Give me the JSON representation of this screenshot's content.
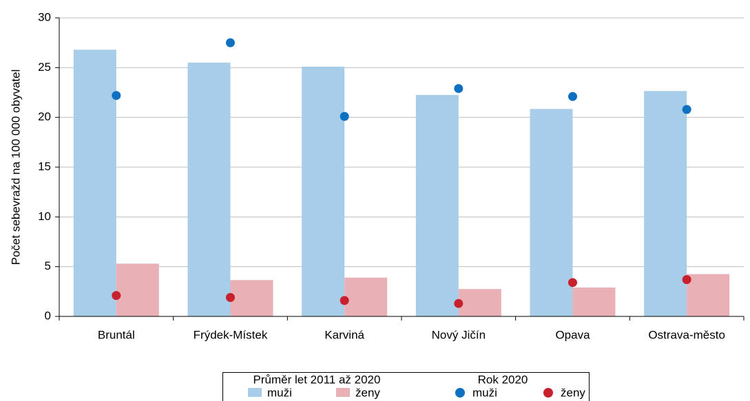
{
  "chart_data": {
    "type": "bar",
    "ylabel": "Počet sebevražd na 100 000 obyvatel",
    "categories": [
      "Bruntál",
      "Frýdek-Místek",
      "Karviná",
      "Nový Jičín",
      "Opava",
      "Ostrava-město"
    ],
    "ylim": [
      0,
      30
    ],
    "yticks": [
      0,
      5,
      10,
      15,
      20,
      25,
      30
    ],
    "grid": true,
    "groups": [
      {
        "title": "Průměr let 2011 až 2020",
        "mark": "bar",
        "series": [
          {
            "name": "muži",
            "color": "#a7cde8",
            "values": [
              26.8,
              25.5,
              25.1,
              22.25,
              20.85,
              22.65
            ]
          },
          {
            "name": "ženy",
            "color": "#e9b1b6",
            "values": [
              5.3,
              3.65,
              3.9,
              2.75,
              2.9,
              4.25
            ]
          }
        ]
      },
      {
        "title": "Rok 2020",
        "mark": "dot",
        "series": [
          {
            "name": "muži",
            "color": "#0e70c0",
            "values": [
              22.2,
              27.5,
              20.1,
              22.9,
              22.1,
              20.8
            ]
          },
          {
            "name": "ženy",
            "color": "#c8202c",
            "values": [
              2.1,
              1.9,
              1.6,
              1.3,
              3.4,
              3.7
            ]
          }
        ]
      }
    ]
  }
}
